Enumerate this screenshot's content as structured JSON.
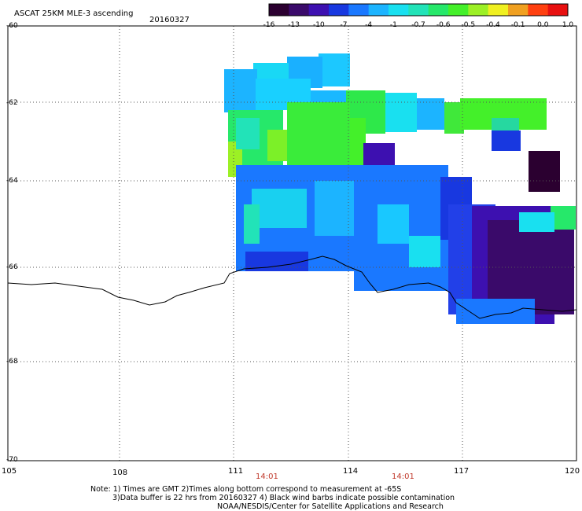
{
  "header": {
    "title": "ASCAT 25KM MLE-3 ascending",
    "date": "20160327"
  },
  "colorbar": {
    "ticks": [
      "-16",
      "-13",
      "-10",
      "-7",
      "-4",
      "-1",
      "-0.7",
      "-0.6",
      "-0.5",
      "-0.4",
      "-0.1",
      "0.0",
      "1.0"
    ],
    "colors": [
      "#2b0030",
      "#3a0a6a",
      "#3d10b0",
      "#1838e0",
      "#1a78ff",
      "#1cb4ff",
      "#19e0f0",
      "#22e3b8",
      "#26e86a",
      "#44f02a",
      "#9cf025",
      "#f0f020",
      "#f0a020",
      "#ff4010",
      "#e81010"
    ]
  },
  "axes": {
    "y_labels": [
      "-60",
      "-62",
      "-64",
      "-66",
      "-68",
      "-70"
    ],
    "x_labels": [
      "105",
      "108",
      "111",
      "114",
      "117",
      "120"
    ]
  },
  "times": [
    "14:01",
    "14:01"
  ],
  "notes": {
    "line1": "Note: 1) Times are GMT 2)Times along bottom correspond to measurement at -65S",
    "line2": "3)Data buffer is 22 hrs from 20160327 4) Black wind barbs indicate possible contamination",
    "line3": "NOAA/NESDIS/Center for Satellite Applications and Research"
  }
}
